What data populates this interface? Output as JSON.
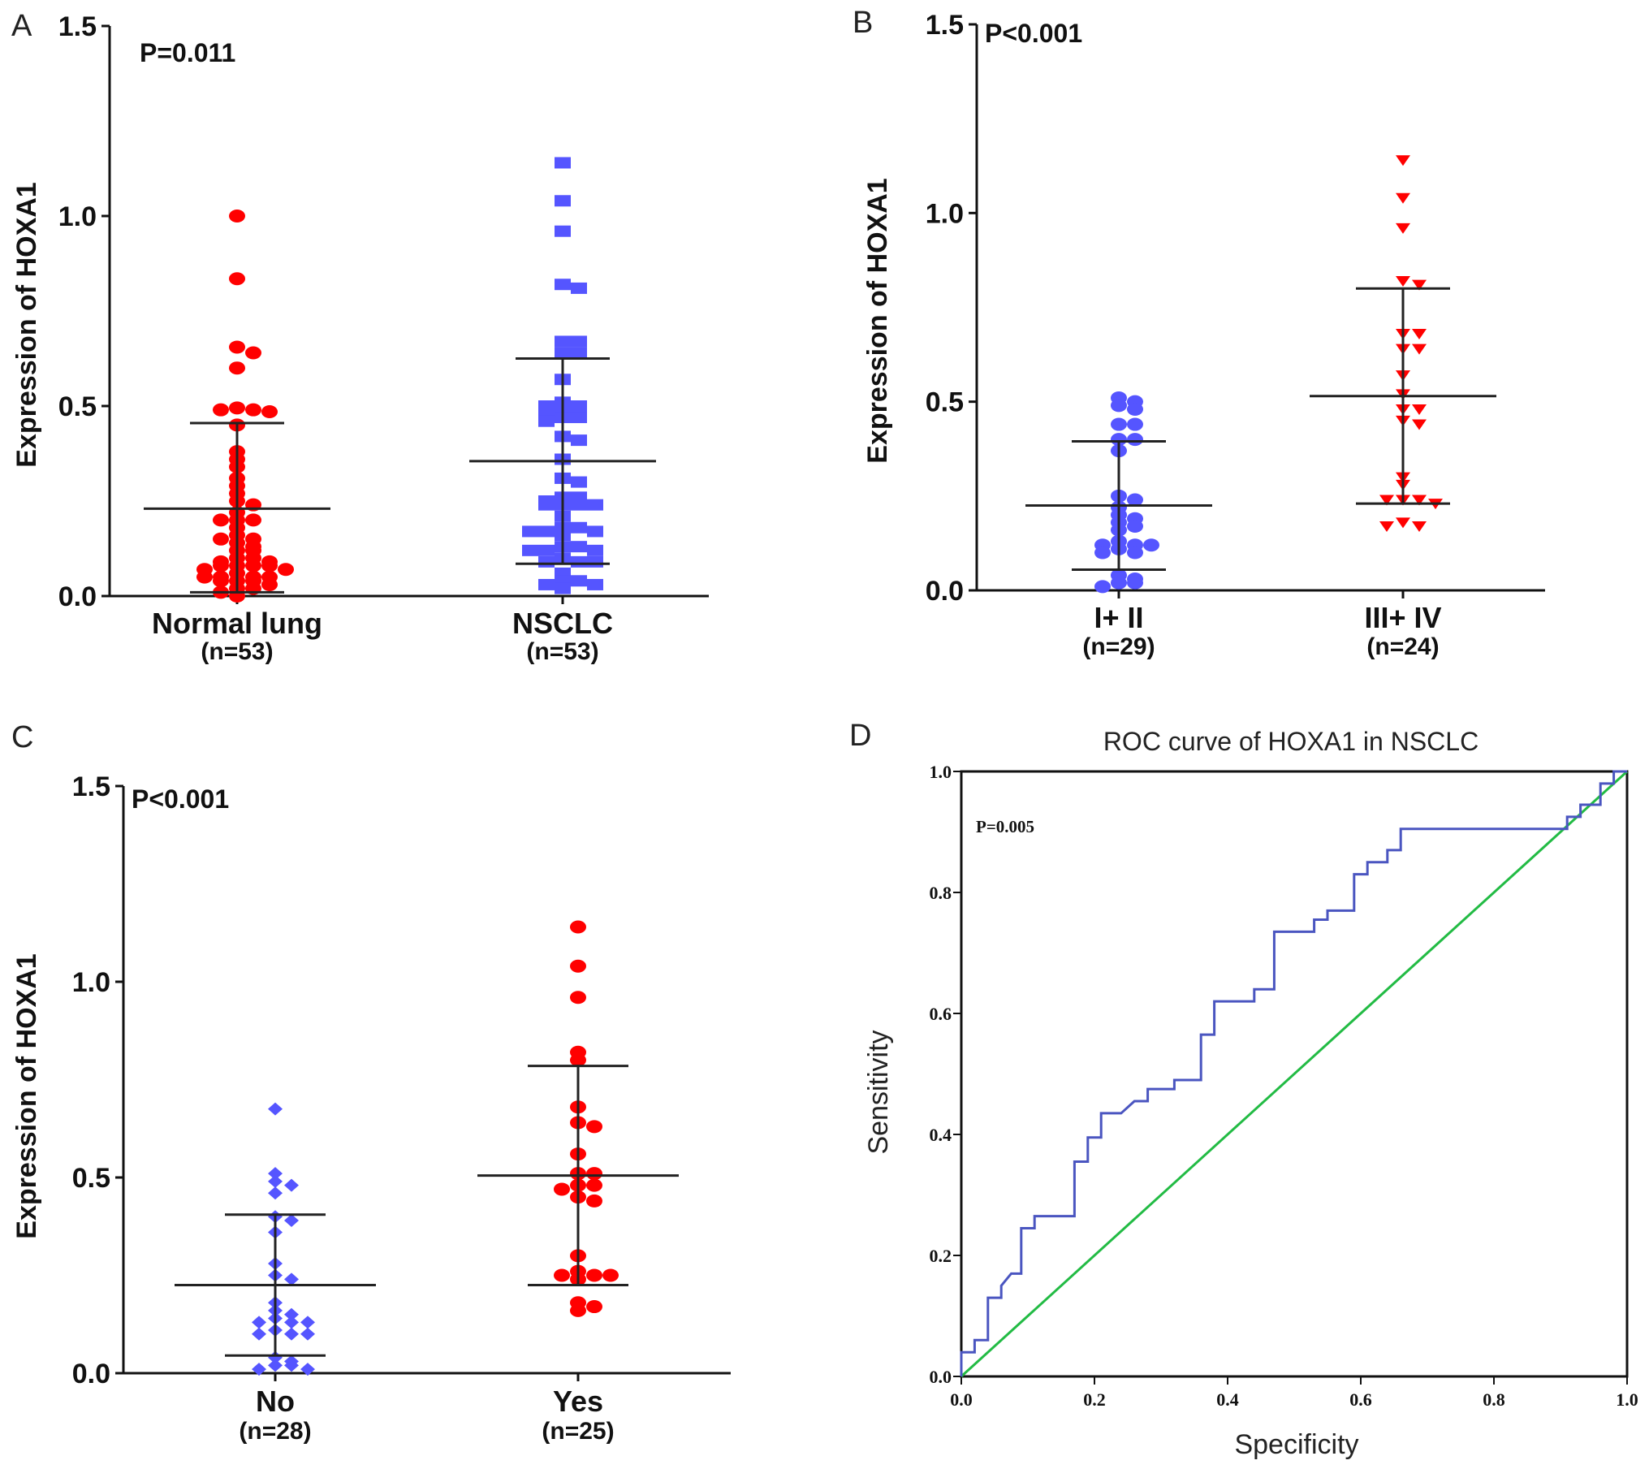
{
  "figure": {
    "panels": [
      "A",
      "B",
      "C",
      "D"
    ]
  },
  "chart_data": [
    {
      "panel": "A",
      "type": "scatter",
      "title": "",
      "ylabel": "Expression of HOXA1",
      "ylim": [
        0,
        1.5
      ],
      "yticks": [
        "0.0",
        "0.5",
        "1.0",
        "1.5"
      ],
      "annotation": "P=0.011",
      "groups": [
        {
          "label": "Normal lung",
          "n_label": "(n=53)",
          "marker": "circle",
          "color": "#ff0000",
          "mean": 0.23,
          "sd_upper": 0.455,
          "sd_lower": 0.01,
          "values": [
            1.0,
            0.835,
            0.655,
            0.64,
            0.6,
            0.495,
            0.49,
            0.485,
            0.49,
            0.45,
            0.38,
            0.36,
            0.34,
            0.31,
            0.29,
            0.27,
            0.25,
            0.24,
            0.22,
            0.2,
            0.2,
            0.2,
            0.18,
            0.16,
            0.15,
            0.15,
            0.14,
            0.13,
            0.12,
            0.12,
            0.1,
            0.1,
            0.09,
            0.09,
            0.08,
            0.08,
            0.08,
            0.08,
            0.07,
            0.07,
            0.06,
            0.05,
            0.05,
            0.05,
            0.05,
            0.04,
            0.04,
            0.04,
            0.03,
            0.02,
            0.02,
            0.01,
            0.0
          ]
        },
        {
          "label": "NSCLC",
          "n_label": "(n=53)",
          "marker": "square",
          "color": "#5555ff",
          "mean": 0.355,
          "sd_upper": 0.625,
          "sd_lower": 0.085,
          "values": [
            1.14,
            1.04,
            0.96,
            0.82,
            0.81,
            0.67,
            0.67,
            0.64,
            0.64,
            0.57,
            0.51,
            0.5,
            0.5,
            0.49,
            0.48,
            0.48,
            0.47,
            0.47,
            0.46,
            0.42,
            0.41,
            0.36,
            0.31,
            0.3,
            0.26,
            0.26,
            0.25,
            0.24,
            0.24,
            0.24,
            0.24,
            0.21,
            0.18,
            0.18,
            0.17,
            0.17,
            0.17,
            0.16,
            0.13,
            0.13,
            0.12,
            0.12,
            0.12,
            0.1,
            0.09,
            0.09,
            0.09,
            0.06,
            0.04,
            0.04,
            0.03,
            0.03,
            0.02
          ]
        }
      ]
    },
    {
      "panel": "B",
      "type": "scatter",
      "title": "",
      "ylabel": "Expression of HOXA1",
      "ylim": [
        0,
        1.5
      ],
      "yticks": [
        "0.0",
        "0.5",
        "1.0",
        "1.5"
      ],
      "annotation": "P<0.001",
      "groups": [
        {
          "label": "I+ II",
          "n_label": "(n=29)",
          "marker": "circle",
          "color": "#5555ff",
          "mean": 0.225,
          "sd_upper": 0.395,
          "sd_lower": 0.055,
          "values": [
            0.51,
            0.5,
            0.49,
            0.48,
            0.44,
            0.44,
            0.4,
            0.4,
            0.37,
            0.25,
            0.24,
            0.22,
            0.2,
            0.19,
            0.18,
            0.17,
            0.16,
            0.13,
            0.12,
            0.12,
            0.12,
            0.11,
            0.1,
            0.1,
            0.04,
            0.03,
            0.02,
            0.02,
            0.01
          ]
        },
        {
          "label": "III+ IV",
          "n_label": "(n=24)",
          "marker": "triangle-down",
          "color": "#ff0000",
          "mean": 0.515,
          "sd_upper": 0.8,
          "sd_lower": 0.23,
          "values": [
            1.14,
            1.04,
            0.96,
            0.82,
            0.81,
            0.68,
            0.68,
            0.64,
            0.64,
            0.57,
            0.52,
            0.48,
            0.48,
            0.45,
            0.44,
            0.3,
            0.28,
            0.24,
            0.24,
            0.24,
            0.23,
            0.18,
            0.17,
            0.17
          ]
        }
      ]
    },
    {
      "panel": "C",
      "type": "scatter",
      "title": "",
      "ylabel": "Expression of HOXA1",
      "ylim": [
        0,
        1.5
      ],
      "yticks": [
        "0.0",
        "0.5",
        "1.0",
        "1.5"
      ],
      "annotation": "P<0.001",
      "groups": [
        {
          "label": "No",
          "n_label": "(n=28)",
          "marker": "diamond",
          "color": "#5555ff",
          "mean": 0.225,
          "sd_upper": 0.405,
          "sd_lower": 0.045,
          "values": [
            0.675,
            0.51,
            0.49,
            0.48,
            0.46,
            0.4,
            0.39,
            0.36,
            0.28,
            0.25,
            0.24,
            0.18,
            0.16,
            0.15,
            0.14,
            0.13,
            0.13,
            0.13,
            0.11,
            0.1,
            0.1,
            0.1,
            0.04,
            0.03,
            0.02,
            0.02,
            0.01,
            0.01
          ]
        },
        {
          "label": "Yes",
          "n_label": "(n=25)",
          "marker": "circle",
          "color": "#ff0000",
          "mean": 0.505,
          "sd_upper": 0.785,
          "sd_lower": 0.225,
          "values": [
            1.14,
            1.04,
            0.96,
            0.82,
            0.8,
            0.68,
            0.64,
            0.63,
            0.56,
            0.51,
            0.51,
            0.48,
            0.48,
            0.47,
            0.45,
            0.44,
            0.3,
            0.26,
            0.25,
            0.25,
            0.24,
            0.25,
            0.18,
            0.16,
            0.17
          ]
        }
      ]
    },
    {
      "panel": "D",
      "type": "line",
      "title": "ROC curve of HOXA1 in NSCLC",
      "xlabel": "Specificity",
      "ylabel": "Sensitivity",
      "xlim": [
        0,
        1
      ],
      "ylim": [
        0,
        1
      ],
      "xticks": [
        "0.0",
        "0.2",
        "0.4",
        "0.6",
        "0.8",
        "1.0"
      ],
      "yticks": [
        "0.0",
        "0.2",
        "0.4",
        "0.6",
        "0.8",
        "1.0"
      ],
      "annotation": "P=0.005",
      "series": [
        {
          "name": "ROC curve",
          "color": "#4a55c0",
          "x": [
            0.0,
            0.0,
            0.02,
            0.02,
            0.04,
            0.04,
            0.06,
            0.06,
            0.075,
            0.09,
            0.09,
            0.11,
            0.11,
            0.17,
            0.17,
            0.19,
            0.19,
            0.21,
            0.21,
            0.24,
            0.26,
            0.28,
            0.28,
            0.32,
            0.32,
            0.36,
            0.36,
            0.38,
            0.38,
            0.44,
            0.44,
            0.47,
            0.47,
            0.53,
            0.53,
            0.55,
            0.55,
            0.59,
            0.59,
            0.61,
            0.61,
            0.64,
            0.64,
            0.66,
            0.66,
            0.91,
            0.91,
            0.93,
            0.93,
            0.96,
            0.96,
            0.98,
            0.98,
            1.0
          ],
          "y": [
            0.0,
            0.04,
            0.04,
            0.06,
            0.06,
            0.13,
            0.13,
            0.15,
            0.17,
            0.17,
            0.245,
            0.245,
            0.265,
            0.265,
            0.355,
            0.355,
            0.395,
            0.395,
            0.435,
            0.435,
            0.455,
            0.455,
            0.475,
            0.475,
            0.49,
            0.49,
            0.565,
            0.565,
            0.62,
            0.62,
            0.64,
            0.64,
            0.735,
            0.735,
            0.755,
            0.755,
            0.77,
            0.77,
            0.83,
            0.83,
            0.85,
            0.85,
            0.87,
            0.87,
            0.905,
            0.905,
            0.925,
            0.925,
            0.945,
            0.945,
            0.98,
            0.98,
            1.0,
            1.0
          ]
        },
        {
          "name": "Reference line",
          "color": "#22bb44",
          "x": [
            0.0,
            1.0
          ],
          "y": [
            0.0,
            1.0
          ]
        }
      ]
    }
  ]
}
